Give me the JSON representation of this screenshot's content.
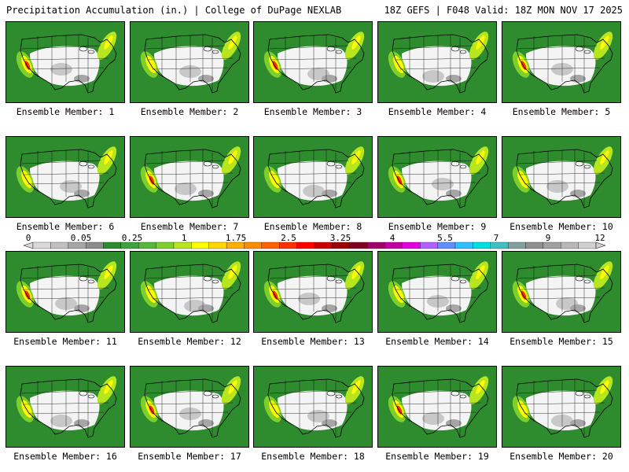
{
  "header": {
    "title_left": "Precipitation Accumulation (in.) | College of DuPage NEXLAB",
    "title_right": "18Z GEFS | F048 Valid: 18Z MON NOV 17 2025"
  },
  "members": [
    "Ensemble Member: 1",
    "Ensemble Member: 2",
    "Ensemble Member: 3",
    "Ensemble Member: 4",
    "Ensemble Member: 5",
    "Ensemble Member: 6",
    "Ensemble Member: 7",
    "Ensemble Member: 8",
    "Ensemble Member: 9",
    "Ensemble Member: 10",
    "Ensemble Member: 11",
    "Ensemble Member: 12",
    "Ensemble Member: 13",
    "Ensemble Member: 14",
    "Ensemble Member: 15",
    "Ensemble Member: 16",
    "Ensemble Member: 17",
    "Ensemble Member: 18",
    "Ensemble Member: 19",
    "Ensemble Member: 20"
  ],
  "colorbar": {
    "tick_labels": [
      "0",
      "0.05",
      "0.25",
      "1",
      "1.75",
      "2.5",
      "3.25",
      "4",
      "5.5",
      "7",
      "9",
      "12"
    ],
    "colors": [
      "#d9d9d9",
      "#c0c0c0",
      "#a6a6a6",
      "#8c8c8c",
      "#2e8b2e",
      "#3fa23f",
      "#56b83a",
      "#7fcf2b",
      "#b7e61f",
      "#ffff00",
      "#ffd700",
      "#ffb000",
      "#ff8c00",
      "#ff6000",
      "#ff3000",
      "#ff0000",
      "#cc0000",
      "#a00000",
      "#800020",
      "#a0006a",
      "#c000a0",
      "#e000e0",
      "#b060ff",
      "#6090ff",
      "#30c0ff",
      "#00e0e0",
      "#40c0c0",
      "#80a0a0",
      "#909090",
      "#a0a0a0",
      "#b8b8b8",
      "#d0d0d0"
    ]
  }
}
